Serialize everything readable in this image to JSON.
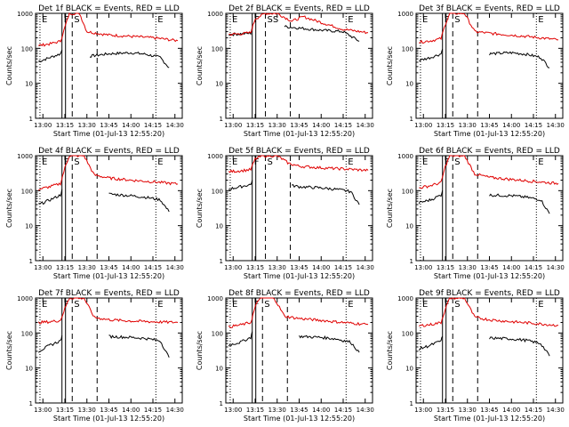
{
  "chart_data": [
    {
      "type": "line",
      "title": "Det 1f BLACK = Events, RED = LLD",
      "ylabel": "Counts/sec",
      "xlabel": "Start Time (01-Jul-13 12:55:20)",
      "x_ticks": [
        "13:00",
        "13:15",
        "13:30",
        "13:45",
        "14:00",
        "14:15",
        "14:30"
      ],
      "y_ticks": [
        "1",
        "10",
        "100",
        "1000"
      ],
      "yscale": "log",
      "ylim": [
        1,
        1000
      ],
      "markers": [
        {
          "label": "E",
          "x": "12:58"
        },
        {
          "label": "F",
          "x": "13:13"
        },
        {
          "label": "S",
          "x": "13:20"
        },
        {
          "label": "E",
          "x": "14:17"
        }
      ],
      "series": [
        {
          "color": "#000000",
          "x": [
            "12:57",
            "13:05",
            "13:12",
            "13:13",
            "13:20",
            "13:25",
            "13:32",
            "13:45",
            "14:00",
            "14:10",
            "14:20",
            "14:26"
          ],
          "values": [
            42,
            55,
            70,
            90,
            null,
            null,
            60,
            70,
            75,
            68,
            55,
            28
          ]
        },
        {
          "color": "#e00000",
          "x": [
            "12:57",
            "13:05",
            "13:12",
            "13:15",
            "13:18",
            "13:25",
            "13:30",
            "13:45",
            "14:00",
            "14:15",
            "14:25",
            "14:32"
          ],
          "values": [
            120,
            135,
            160,
            400,
            1000,
            1000,
            300,
            240,
            220,
            200,
            180,
            165
          ]
        }
      ]
    },
    {
      "type": "line",
      "title": "Det 2f BLACK = Events, RED = LLD",
      "ylabel": "Counts/sec",
      "xlabel": "Start Time (01-Jul-13 12:55:20)",
      "x_ticks": [
        "13:00",
        "13:15",
        "13:30",
        "13:45",
        "14:00",
        "14:15",
        "14:30"
      ],
      "y_ticks": [
        "1",
        "10",
        "100",
        "1000"
      ],
      "yscale": "log",
      "ylim": [
        1,
        1000
      ],
      "markers": [
        {
          "label": "E",
          "x": "12:58"
        },
        {
          "label": "F",
          "x": "13:13"
        },
        {
          "label": "SS",
          "x": "13:22"
        },
        {
          "label": "E",
          "x": "14:17"
        }
      ],
      "series": [
        {
          "color": "#000000",
          "x": [
            "12:57",
            "13:05",
            "13:12",
            "13:13",
            "13:20",
            "13:28",
            "13:35",
            "13:45",
            "14:00",
            "14:15",
            "14:26"
          ],
          "values": [
            250,
            260,
            270,
            400,
            null,
            null,
            420,
            380,
            330,
            300,
            160
          ]
        },
        {
          "color": "#e00000",
          "x": [
            "12:57",
            "13:05",
            "13:12",
            "13:15",
            "13:22",
            "13:30",
            "13:40",
            "13:48",
            "14:00",
            "14:15",
            "14:32"
          ],
          "values": [
            250,
            260,
            280,
            700,
            1000,
            1000,
            600,
            800,
            550,
            350,
            280
          ]
        }
      ]
    },
    {
      "type": "line",
      "title": "Det 3f BLACK = Events, RED = LLD",
      "ylabel": "Counts/sec",
      "xlabel": "Start Time (01-Jul-13 12:55:20)",
      "x_ticks": [
        "13:00",
        "13:15",
        "13:30",
        "13:45",
        "14:00",
        "14:15",
        "14:30"
      ],
      "y_ticks": [
        "1",
        "10",
        "100",
        "1000"
      ],
      "yscale": "log",
      "ylim": [
        1,
        1000
      ],
      "markers": [
        {
          "label": "E",
          "x": "12:58"
        },
        {
          "label": "F",
          "x": "13:13"
        },
        {
          "label": "S",
          "x": "13:20"
        },
        {
          "label": "E",
          "x": "14:17"
        }
      ],
      "series": [
        {
          "color": "#000000",
          "x": [
            "12:57",
            "13:05",
            "13:12",
            "13:13",
            "13:20",
            "13:30",
            "13:45",
            "14:00",
            "14:10",
            "14:20",
            "14:26"
          ],
          "values": [
            45,
            55,
            70,
            95,
            null,
            null,
            70,
            75,
            68,
            55,
            28
          ]
        },
        {
          "color": "#e00000",
          "x": [
            "12:57",
            "13:05",
            "13:12",
            "13:15",
            "13:18",
            "13:28",
            "13:35",
            "13:45",
            "14:00",
            "14:15",
            "14:32"
          ],
          "values": [
            150,
            165,
            190,
            500,
            1000,
            1000,
            300,
            270,
            240,
            210,
            175
          ]
        }
      ]
    },
    {
      "type": "line",
      "title": "Det 4f BLACK = Events, RED = LLD",
      "ylabel": "Counts/sec",
      "xlabel": "Start Time (01-Jul-13 12:55:20)",
      "x_ticks": [
        "13:00",
        "13:15",
        "13:30",
        "13:45",
        "14:00",
        "14:15",
        "14:30"
      ],
      "y_ticks": [
        "1",
        "10",
        "100",
        "1000"
      ],
      "yscale": "log",
      "ylim": [
        1,
        1000
      ],
      "markers": [
        {
          "label": "E",
          "x": "12:58"
        },
        {
          "label": "F",
          "x": "13:13"
        },
        {
          "label": "S",
          "x": "13:20"
        },
        {
          "label": "E",
          "x": "14:17"
        }
      ],
      "series": [
        {
          "color": "#000000",
          "x": [
            "12:57",
            "13:05",
            "13:12",
            "13:13",
            "13:20",
            "13:30",
            "13:45",
            "14:00",
            "14:10",
            "14:20",
            "14:26"
          ],
          "values": [
            40,
            55,
            75,
            110,
            null,
            null,
            80,
            72,
            65,
            55,
            25
          ]
        },
        {
          "color": "#e00000",
          "x": [
            "12:57",
            "13:05",
            "13:12",
            "13:15",
            "13:18",
            "13:28",
            "13:35",
            "13:45",
            "14:00",
            "14:15",
            "14:32"
          ],
          "values": [
            110,
            130,
            160,
            450,
            1000,
            1000,
            280,
            230,
            200,
            180,
            155
          ]
        }
      ]
    },
    {
      "type": "line",
      "title": "Det 5f BLACK = Events, RED = LLD",
      "ylabel": "Counts/sec",
      "xlabel": "Start Time (01-Jul-13 12:55:20)",
      "x_ticks": [
        "13:00",
        "13:15",
        "13:30",
        "13:45",
        "14:00",
        "14:15",
        "14:30"
      ],
      "y_ticks": [
        "1",
        "10",
        "100",
        "1000"
      ],
      "yscale": "log",
      "ylim": [
        1,
        1000
      ],
      "markers": [
        {
          "label": "E",
          "x": "12:58"
        },
        {
          "label": "F",
          "x": "13:13"
        },
        {
          "label": "S",
          "x": "13:22"
        },
        {
          "label": "E",
          "x": "14:17"
        }
      ],
      "series": [
        {
          "color": "#000000",
          "x": [
            "12:57",
            "13:05",
            "13:12",
            "13:13",
            "13:20",
            "13:30",
            "13:40",
            "13:45",
            "14:00",
            "14:10",
            "14:20",
            "14:26"
          ],
          "values": [
            110,
            130,
            150,
            200,
            null,
            null,
            140,
            130,
            120,
            110,
            95,
            40
          ]
        },
        {
          "color": "#e00000",
          "x": [
            "12:57",
            "13:05",
            "13:12",
            "13:15",
            "13:20",
            "13:30",
            "13:38",
            "13:45",
            "14:00",
            "14:15",
            "14:32"
          ],
          "values": [
            350,
            370,
            400,
            800,
            1000,
            1000,
            600,
            500,
            450,
            420,
            380
          ]
        }
      ]
    },
    {
      "type": "line",
      "title": "Det 6f BLACK = Events, RED = LLD",
      "ylabel": "Counts/sec",
      "xlabel": "Start Time (01-Jul-13 12:55:20)",
      "x_ticks": [
        "13:00",
        "13:15",
        "13:30",
        "13:45",
        "14:00",
        "14:15",
        "14:30"
      ],
      "y_ticks": [
        "1",
        "10",
        "100",
        "1000"
      ],
      "yscale": "log",
      "ylim": [
        1,
        1000
      ],
      "markers": [
        {
          "label": "E",
          "x": "12:58"
        },
        {
          "label": "F",
          "x": "13:13"
        },
        {
          "label": "S",
          "x": "13:20"
        },
        {
          "label": "E",
          "x": "14:17"
        }
      ],
      "series": [
        {
          "color": "#000000",
          "x": [
            "12:57",
            "13:05",
            "13:12",
            "13:13",
            "13:20",
            "13:30",
            "13:45",
            "14:00",
            "14:10",
            "14:20",
            "14:26"
          ],
          "values": [
            45,
            55,
            75,
            100,
            null,
            null,
            75,
            72,
            65,
            55,
            22
          ]
        },
        {
          "color": "#e00000",
          "x": [
            "12:57",
            "13:05",
            "13:12",
            "13:15",
            "13:18",
            "13:28",
            "13:35",
            "13:45",
            "14:00",
            "14:15",
            "14:32"
          ],
          "values": [
            120,
            140,
            170,
            500,
            1000,
            1000,
            300,
            240,
            210,
            185,
            160
          ]
        }
      ]
    },
    {
      "type": "line",
      "title": "Det 7f BLACK = Events, RED = LLD",
      "ylabel": "Counts/sec",
      "xlabel": "Start Time (01-Jul-13 12:55:20)",
      "x_ticks": [
        "13:00",
        "13:15",
        "13:30",
        "13:45",
        "14:00",
        "14:15",
        "14:30"
      ],
      "y_ticks": [
        "1",
        "10",
        "100",
        "1000"
      ],
      "yscale": "log",
      "ylim": [
        1,
        1000
      ],
      "markers": [
        {
          "label": "E",
          "x": "12:58"
        },
        {
          "label": "F",
          "x": "13:13"
        },
        {
          "label": "S",
          "x": "13:20"
        },
        {
          "label": "E",
          "x": "14:17"
        }
      ],
      "series": [
        {
          "color": "#000000",
          "x": [
            "12:57",
            "13:05",
            "13:12",
            "13:13",
            "13:20",
            "13:30",
            "13:45",
            "14:00",
            "14:10",
            "14:20",
            "14:26"
          ],
          "values": [
            30,
            45,
            60,
            85,
            null,
            null,
            80,
            75,
            70,
            60,
            20
          ]
        },
        {
          "color": "#e00000",
          "x": [
            "12:57",
            "13:05",
            "13:12",
            "13:15",
            "13:18",
            "13:28",
            "13:35",
            "13:45",
            "14:00",
            "14:15",
            "14:32"
          ],
          "values": [
            200,
            210,
            230,
            500,
            1000,
            1000,
            280,
            240,
            220,
            210,
            200
          ]
        }
      ]
    },
    {
      "type": "line",
      "title": "Det 8f BLACK = Events, RED = LLD",
      "ylabel": "Counts/sec",
      "xlabel": "Start Time (01-Jul-13 12:55:20)",
      "x_ticks": [
        "13:00",
        "13:15",
        "13:30",
        "13:45",
        "14:00",
        "14:15",
        "14:30"
      ],
      "y_ticks": [
        "1",
        "10",
        "100",
        "1000"
      ],
      "yscale": "log",
      "ylim": [
        1,
        1000
      ],
      "markers": [
        {
          "label": "E",
          "x": "12:58"
        },
        {
          "label": "F",
          "x": "13:13"
        },
        {
          "label": "S",
          "x": "13:20"
        },
        {
          "label": "E",
          "x": "14:17"
        }
      ],
      "series": [
        {
          "color": "#000000",
          "x": [
            "12:57",
            "13:05",
            "13:12",
            "13:13",
            "13:20",
            "13:30",
            "13:45",
            "14:00",
            "14:10",
            "14:20",
            "14:26"
          ],
          "values": [
            45,
            55,
            75,
            110,
            null,
            null,
            80,
            75,
            68,
            55,
            28
          ]
        },
        {
          "color": "#e00000",
          "x": [
            "12:57",
            "13:05",
            "13:12",
            "13:15",
            "13:18",
            "13:28",
            "13:35",
            "13:45",
            "14:00",
            "14:15",
            "14:32"
          ],
          "values": [
            150,
            170,
            200,
            550,
            1000,
            1000,
            300,
            260,
            230,
            200,
            175
          ]
        }
      ]
    },
    {
      "type": "line",
      "title": "Det 9f BLACK = Events, RED = LLD",
      "ylabel": "Counts/sec",
      "xlabel": "Start Time (01-Jul-13 12:55:20)",
      "x_ticks": [
        "13:00",
        "13:15",
        "13:30",
        "13:45",
        "14:00",
        "14:15",
        "14:30"
      ],
      "y_ticks": [
        "1",
        "10",
        "100",
        "1000"
      ],
      "yscale": "log",
      "ylim": [
        1,
        1000
      ],
      "markers": [
        {
          "label": "E",
          "x": "12:58"
        },
        {
          "label": "F",
          "x": "13:13"
        },
        {
          "label": "S",
          "x": "13:20"
        },
        {
          "label": "E",
          "x": "14:17"
        }
      ],
      "series": [
        {
          "color": "#000000",
          "x": [
            "12:57",
            "13:05",
            "13:12",
            "13:13",
            "13:20",
            "13:30",
            "13:45",
            "14:00",
            "14:10",
            "14:20",
            "14:26"
          ],
          "values": [
            35,
            45,
            60,
            80,
            null,
            null,
            72,
            68,
            62,
            50,
            22
          ]
        },
        {
          "color": "#e00000",
          "x": [
            "12:57",
            "13:05",
            "13:12",
            "13:15",
            "13:18",
            "13:28",
            "13:35",
            "13:45",
            "14:00",
            "14:15",
            "14:32"
          ],
          "values": [
            160,
            175,
            200,
            500,
            1000,
            1000,
            280,
            240,
            210,
            190,
            165
          ]
        }
      ]
    }
  ]
}
